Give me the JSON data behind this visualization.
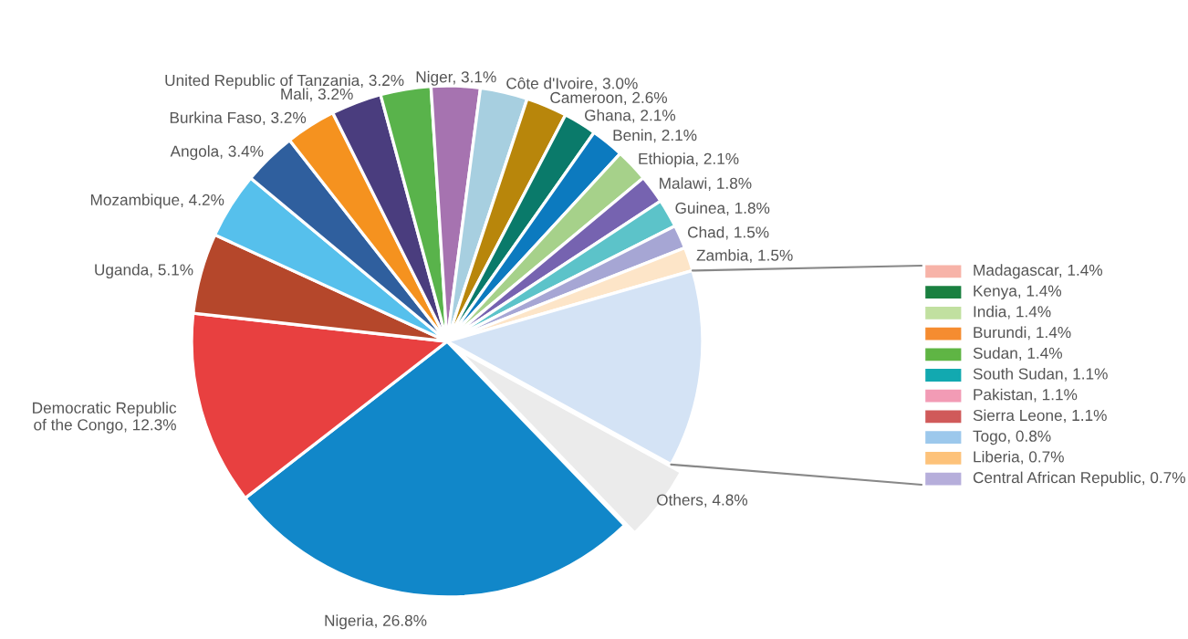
{
  "chart_data": [
    {
      "type": "pie",
      "categories": [
        "Nigeria",
        "Democratic Republic\nof the Congo",
        "Uganda",
        "Mozambique",
        "Angola",
        "Burkina Faso",
        "Mali",
        "United Republic of Tanzania",
        "Niger",
        "Côte d'Ivoire",
        "Cameroon",
        "Ghana",
        "Benin",
        "Ethiopia",
        "Malawi",
        "Guinea",
        "Chad",
        "Zambia",
        null,
        "Others"
      ],
      "values": [
        26.8,
        12.3,
        5.1,
        4.2,
        3.4,
        3.2,
        3.2,
        3.2,
        3.1,
        3.0,
        2.6,
        2.1,
        2.1,
        2.1,
        1.8,
        1.8,
        1.5,
        1.5,
        12.5,
        4.8
      ],
      "value_labels": [
        "26.8%",
        "12.3%",
        "5.1%",
        "4.2%",
        "3.4%",
        "3.2%",
        "3.2%",
        "3.2%",
        "3.1%",
        "3.0%",
        "2.6%",
        "2.1%",
        "2.1%",
        "2.1%",
        "1.8%",
        "1.8%",
        "1.5%",
        "1.5%",
        null,
        "4.8%"
      ],
      "colors": [
        "#1187c9",
        "#e84040",
        "#b5472b",
        "#56c0ec",
        "#2f5f9e",
        "#f5921f",
        "#4a3d7e",
        "#59b34b",
        "#a673b0",
        "#a7cfe0",
        "#b8860b",
        "#0a7a6a",
        "#0c7abf",
        "#a6d18a",
        "#7663b0",
        "#5cc3c9",
        "#a6a6d4",
        "#fde5c8",
        "#d4e3f5",
        "#ebebeb"
      ]
    },
    {
      "type": "other",
      "categories": [
        "Madagascar, 1.4%",
        "Kenya, 1.4%",
        "India, 1.4%",
        "Burundi, 1.4%",
        "Sudan, 1.4%",
        "South Sudan, 1.1%",
        "Pakistan, 1.1%",
        "Sierra Leone, 1.1%",
        "Togo, 0.8%",
        "Liberia, 0.7%",
        "Central African Republic, 0.7%"
      ],
      "colors": [
        "#f7b3a8",
        "#1a8040",
        "#c1e0a0",
        "#f58c30",
        "#5fb544",
        "#12a9b0",
        "#f29bb5",
        "#d05a5a",
        "#9cc8ec",
        "#fdc27a",
        "#b6aedb"
      ]
    }
  ]
}
